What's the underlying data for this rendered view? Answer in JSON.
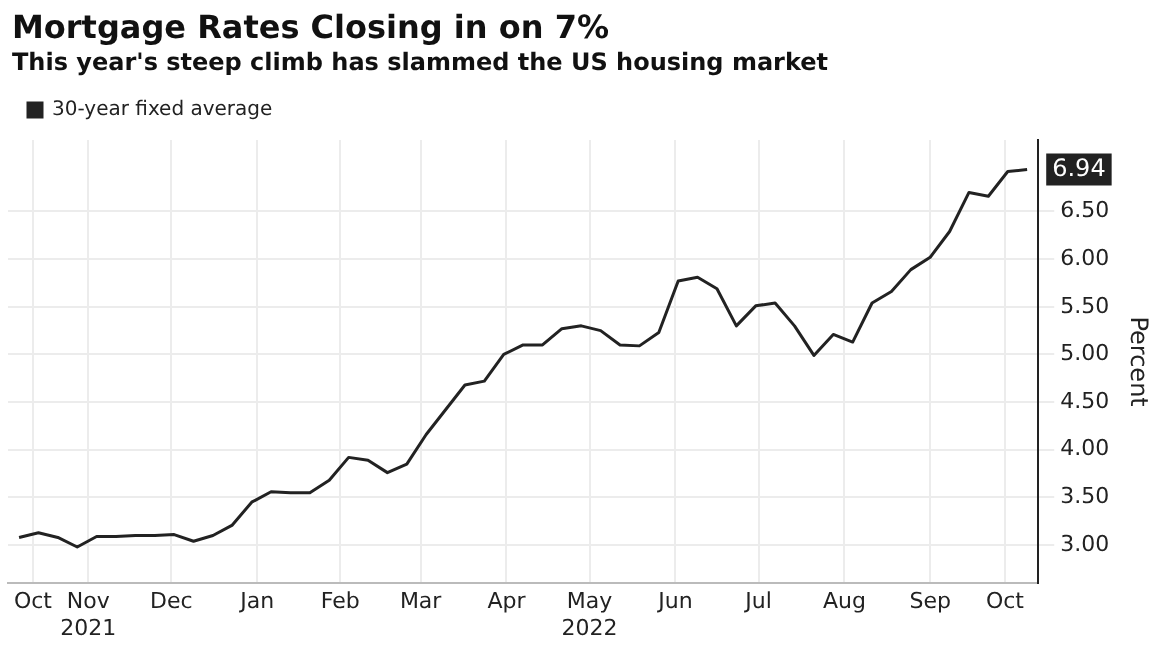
{
  "chart_data": {
    "type": "line",
    "title": "Mortgage Rates Closing in on 7%",
    "subtitle": "This year's steep climb has slammed the US housing market",
    "ylabel": "Percent",
    "x": [
      "2021-10-21",
      "2021-10-28",
      "2021-11-04",
      "2021-11-11",
      "2021-11-18",
      "2021-11-25",
      "2021-12-02",
      "2021-12-09",
      "2021-12-16",
      "2021-12-23",
      "2021-12-30",
      "2022-01-06",
      "2022-01-13",
      "2022-01-20",
      "2022-01-27",
      "2022-02-03",
      "2022-02-10",
      "2022-02-17",
      "2022-02-24",
      "2022-03-03",
      "2022-03-10",
      "2022-03-17",
      "2022-03-24",
      "2022-03-31",
      "2022-04-07",
      "2022-04-14",
      "2022-04-21",
      "2022-04-28",
      "2022-05-05",
      "2022-05-12",
      "2022-05-19",
      "2022-05-26",
      "2022-06-02",
      "2022-06-09",
      "2022-06-16",
      "2022-06-23",
      "2022-06-30",
      "2022-07-07",
      "2022-07-14",
      "2022-07-21",
      "2022-07-28",
      "2022-08-04",
      "2022-08-11",
      "2022-08-18",
      "2022-08-25",
      "2022-09-01",
      "2022-09-08",
      "2022-09-15",
      "2022-09-22",
      "2022-09-29",
      "2022-10-06",
      "2022-10-13",
      "2022-10-20"
    ],
    "series": [
      {
        "name": "30-year fixed average",
        "color": "#222222",
        "values": [
          3.08,
          3.13,
          3.08,
          2.98,
          3.09,
          3.09,
          3.1,
          3.1,
          3.11,
          3.04,
          3.1,
          3.21,
          3.45,
          3.56,
          3.55,
          3.55,
          3.68,
          3.92,
          3.89,
          3.76,
          3.85,
          4.16,
          4.42,
          4.68,
          4.72,
          5.0,
          5.1,
          5.1,
          5.27,
          5.3,
          5.25,
          5.1,
          5.09,
          5.23,
          5.77,
          5.81,
          5.69,
          5.3,
          5.51,
          5.54,
          5.3,
          4.99,
          5.21,
          5.13,
          5.54,
          5.66,
          5.89,
          6.02,
          6.29,
          6.7,
          6.66,
          6.92,
          6.94
        ],
        "value_labels": [
          null,
          null,
          null,
          null,
          null,
          null,
          null,
          null,
          null,
          null,
          null,
          null,
          null,
          null,
          null,
          null,
          null,
          null,
          null,
          null,
          null,
          null,
          null,
          null,
          null,
          null,
          null,
          null,
          null,
          null,
          null,
          null,
          null,
          null,
          null,
          null,
          null,
          null,
          null,
          null,
          null,
          null,
          null,
          null,
          null,
          null,
          null,
          null,
          null,
          null,
          null,
          null,
          "6.94"
        ]
      }
    ],
    "xlim": [
      "2021-10-17",
      "2022-10-24"
    ],
    "xticks": [
      {
        "value": "2021-10-26",
        "label": "Oct"
      },
      {
        "value": "2021-11-15",
        "label": "Nov\n2021"
      },
      {
        "value": "2021-12-15",
        "label": "Dec"
      },
      {
        "value": "2022-01-15",
        "label": "Jan"
      },
      {
        "value": "2022-02-14",
        "label": "Feb"
      },
      {
        "value": "2022-03-15",
        "label": "Mar"
      },
      {
        "value": "2022-04-15",
        "label": "Apr"
      },
      {
        "value": "2022-05-15",
        "label": "May\n2022"
      },
      {
        "value": "2022-06-15",
        "label": "Jun"
      },
      {
        "value": "2022-07-15",
        "label": "Jul"
      },
      {
        "value": "2022-08-15",
        "label": "Aug"
      },
      {
        "value": "2022-09-15",
        "label": "Sep"
      },
      {
        "value": "2022-10-12",
        "label": "Oct"
      }
    ],
    "ylim": [
      2.6,
      7.25
    ],
    "yticks": [
      {
        "value": 3,
        "label": "3.00"
      },
      {
        "value": 3.5,
        "label": "3.50"
      },
      {
        "value": 4,
        "label": "4.00"
      },
      {
        "value": 4.5,
        "label": "4.50"
      },
      {
        "value": 5,
        "label": "5.00"
      },
      {
        "value": 5.5,
        "label": "5.50"
      },
      {
        "value": 6,
        "label": "6.00"
      },
      {
        "value": 6.5,
        "label": "6.50"
      }
    ],
    "grid": true,
    "legend": "top left",
    "marker": "none",
    "line_style": "solid"
  }
}
